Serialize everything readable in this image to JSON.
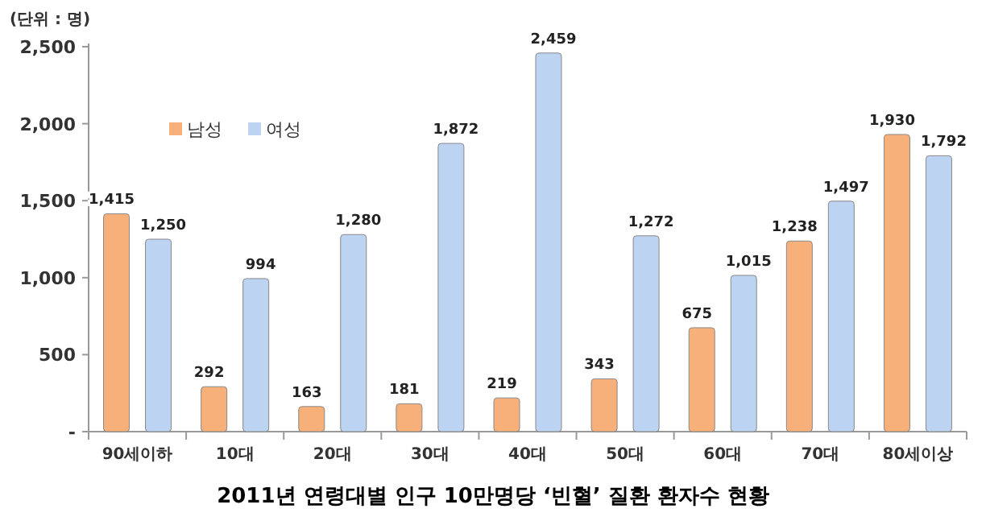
{
  "chart_data": {
    "type": "bar",
    "title": "2011년 연령대별 인구 10만명당 ‘빈혈’ 질환 환자수 현황",
    "ylabel": "(단위 : 명)",
    "categories": [
      "90세이하",
      "10대",
      "20대",
      "30대",
      "40대",
      "50대",
      "60대",
      "70대",
      "80세이상"
    ],
    "series": [
      {
        "name": "남성",
        "color": "#f7b07a",
        "values": [
          1415,
          292,
          163,
          181,
          219,
          343,
          675,
          1238,
          1930
        ],
        "value_labels": [
          "1,415",
          "292",
          "163",
          "181",
          "219",
          "343",
          "675",
          "1,238",
          "1,930"
        ]
      },
      {
        "name": "여성",
        "color": "#bcd3f2",
        "values": [
          1250,
          994,
          1280,
          1872,
          2459,
          1272,
          1015,
          1497,
          1792
        ],
        "value_labels": [
          "1,250",
          "994",
          "1,280",
          "1,872",
          "2,459",
          "1,272",
          "1,015",
          "1,497",
          "1,792"
        ]
      }
    ],
    "ylim": [
      0,
      2500
    ],
    "yticks": [
      {
        "value": 0,
        "label": "-"
      },
      500,
      {
        "value": 1000,
        "label": "1,000"
      },
      {
        "value": 1500,
        "label": "1,500"
      },
      {
        "value": 2000,
        "label": "2,000"
      },
      {
        "value": 2500,
        "label": "2,500"
      }
    ],
    "grid": false,
    "legend": "top left"
  }
}
